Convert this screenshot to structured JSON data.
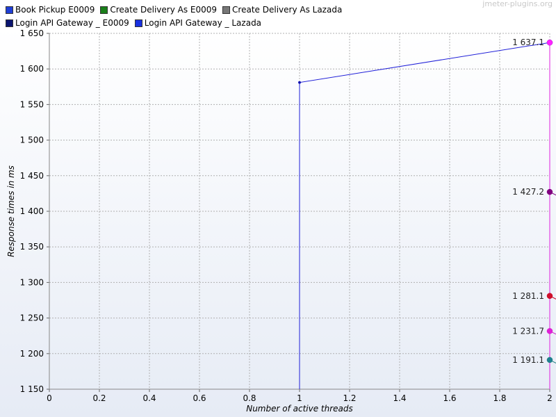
{
  "watermark": "jmeter-plugins.org",
  "legend": [
    {
      "label": "Book Pickup E0009",
      "color": "#1f3fd6"
    },
    {
      "label": "Create Delivery As E0009",
      "color": "#1a7f1a"
    },
    {
      "label": "Create Delivery As Lazada",
      "color": "#777777"
    },
    {
      "label": "Login API Gateway _ E0009",
      "color": "#0a1470"
    },
    {
      "label": "Login API Gateway _ Lazada",
      "color": "#1830e0"
    }
  ],
  "chart_data": {
    "type": "line",
    "title": "",
    "xlabel": "Number of active threads",
    "ylabel": "Response times in ms",
    "xlim": [
      0,
      2
    ],
    "ylim": [
      1150,
      1650
    ],
    "x_ticks": [
      0,
      0.2,
      0.4,
      0.6,
      0.8,
      1,
      1.2,
      1.4,
      1.6,
      1.8,
      2
    ],
    "x_tick_labels": [
      "0",
      "0.2",
      "0.4",
      "0.6",
      "0.8",
      "1",
      "1.2",
      "1.4",
      "1.6",
      "1.8",
      "2"
    ],
    "y_ticks": [
      1150,
      1200,
      1250,
      1300,
      1350,
      1400,
      1450,
      1500,
      1550,
      1600,
      1650
    ],
    "y_tick_labels": [
      "1 150",
      "1 200",
      "1 250",
      "1 300",
      "1 350",
      "1 400",
      "1 450",
      "1 500",
      "1 550",
      "1 600",
      "1 650"
    ],
    "grid": true,
    "legend_position": "top",
    "series": [
      {
        "color": "#1f1fd8",
        "points": [
          [
            1,
            1150
          ],
          [
            1,
            1581
          ],
          [
            2,
            1637.1
          ]
        ],
        "marker_color": "#1010a0"
      },
      {
        "color": "#e020e0",
        "points": [
          [
            2,
            1150
          ],
          [
            2,
            1637.1
          ]
        ],
        "marker_color": "#ff22ff"
      },
      {
        "color": "#800080",
        "points": [
          [
            2,
            1427.2
          ]
        ],
        "marker_color": "#800080"
      },
      {
        "color": "#c80020",
        "points": [
          [
            2,
            1281.1
          ]
        ],
        "marker_color": "#d0102a"
      },
      {
        "color": "#d020c8",
        "points": [
          [
            2,
            1231.7
          ]
        ],
        "marker_color": "#e020d8"
      },
      {
        "color": "#208080",
        "points": [
          [
            2,
            1191.1
          ]
        ],
        "marker_color": "#208090"
      }
    ],
    "value_labels": [
      {
        "text": "1 637.1",
        "x": 2,
        "y": 1637.1
      },
      {
        "text": "1 427.2",
        "x": 2,
        "y": 1427.2
      },
      {
        "text": "1 281.1",
        "x": 2,
        "y": 1281.1
      },
      {
        "text": "1 231.7",
        "x": 2,
        "y": 1231.7
      },
      {
        "text": "1 191.1",
        "x": 2,
        "y": 1191.1
      }
    ]
  }
}
